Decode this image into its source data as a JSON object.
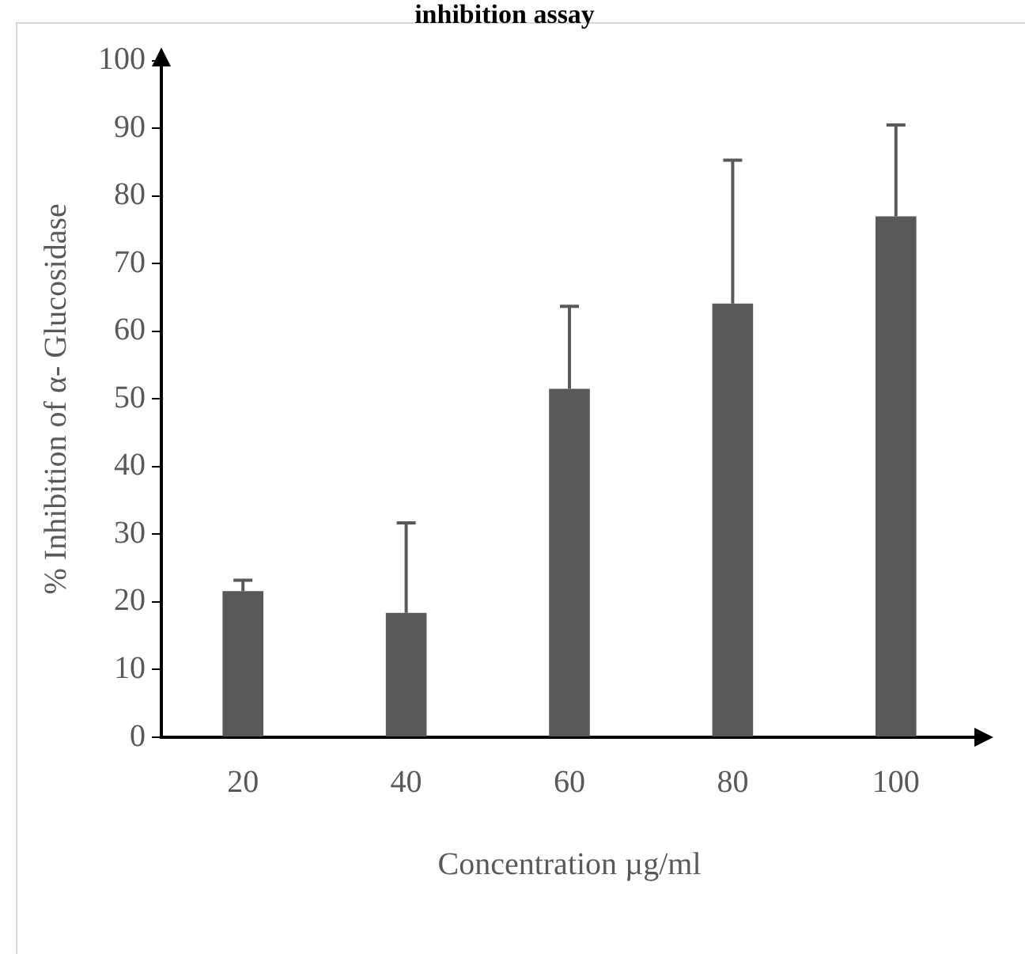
{
  "chart_data": {
    "type": "bar",
    "title": "inhibition assay",
    "xlabel": "Concentration µg/ml",
    "ylabel": "% Inhibition of α- Glucosidase",
    "categories": [
      "20",
      "40",
      "60",
      "80",
      "100"
    ],
    "values": [
      21.6,
      18.4,
      51.5,
      64.1,
      77.0
    ],
    "errors": [
      [
        21.6,
        23.2
      ],
      [
        18.4,
        31.7
      ],
      [
        51.5,
        63.7
      ],
      [
        64.1,
        85.3
      ],
      [
        77.0,
        90.5
      ]
    ],
    "color": "#595959",
    "ylim": [
      0,
      100
    ],
    "yticks": [
      0,
      10,
      20,
      30,
      40,
      50,
      60,
      70,
      80,
      90,
      100
    ],
    "grid": false,
    "legend": false
  }
}
